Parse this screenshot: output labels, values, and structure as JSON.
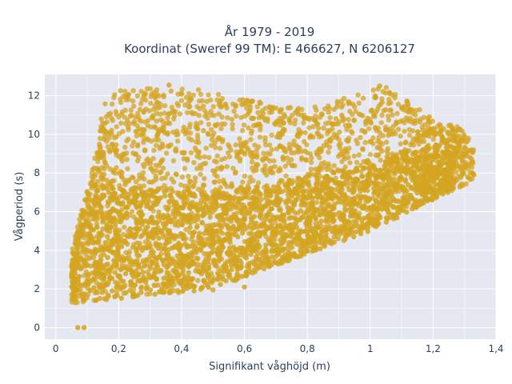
{
  "chart_data": {
    "type": "scatter",
    "title_line1": "År 1979 - 2019",
    "title_line2": "Koordinat (Sweref 99 TM): E 466627, N 6206127",
    "xlabel": "Signifikant våghöjd (m)",
    "ylabel": "Vågperiod (s)",
    "xlim": [
      -0.035,
      1.4
    ],
    "ylim": [
      -0.6,
      13.1
    ],
    "x_ticks": [
      0,
      0.2,
      0.4,
      0.6,
      0.8,
      1,
      1.2,
      1.4
    ],
    "x_tick_labels": [
      "0",
      "0,2",
      "0,4",
      "0,6",
      "0,8",
      "1",
      "1,2",
      "1,4"
    ],
    "y_ticks": [
      0,
      2,
      4,
      6,
      8,
      10,
      12
    ],
    "y_tick_labels": [
      "0",
      "2",
      "4",
      "6",
      "8",
      "10",
      "12"
    ],
    "grid": true,
    "legend": "none",
    "marker_color": "#d4a420",
    "plot_bg_color": "#e5e8f1",
    "envelope": {
      "lower": [
        [
          0.05,
          1.25
        ],
        [
          0.2,
          1.5
        ],
        [
          0.4,
          1.8
        ],
        [
          0.5,
          2.0
        ],
        [
          0.6,
          2.6
        ],
        [
          0.8,
          3.8
        ],
        [
          1.0,
          5.0
        ],
        [
          1.2,
          6.6
        ],
        [
          1.33,
          7.6
        ]
      ],
      "upper": [
        [
          0.05,
          4.0
        ],
        [
          0.1,
          7.2
        ],
        [
          0.12,
          8.5
        ],
        [
          0.15,
          11.5
        ],
        [
          0.2,
          12.3
        ],
        [
          0.4,
          12.5
        ],
        [
          0.6,
          11.8
        ],
        [
          0.8,
          11.3
        ],
        [
          1.05,
          12.5
        ],
        [
          1.2,
          10.8
        ],
        [
          1.3,
          10.3
        ],
        [
          1.34,
          8.9
        ]
      ]
    },
    "notable_points": [
      {
        "x": 0.07,
        "y": 0.0
      },
      {
        "x": 0.09,
        "y": 0.0
      },
      {
        "x": 1.03,
        "y": 12.5
      },
      {
        "x": 0.36,
        "y": 12.55
      },
      {
        "x": 0.6,
        "y": 2.1
      },
      {
        "x": 0.5,
        "y": 1.95
      }
    ]
  }
}
